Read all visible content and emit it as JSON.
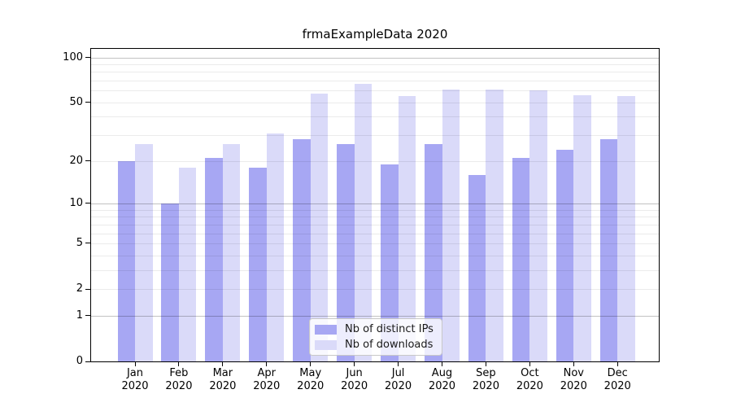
{
  "title": "frmaExampleData 2020",
  "chart_data": {
    "type": "bar",
    "title": "frmaExampleData 2020",
    "categories": [
      "Jan",
      "Feb",
      "Mar",
      "Apr",
      "May",
      "Jun",
      "Jul",
      "Aug",
      "Sep",
      "Oct",
      "Nov",
      "Dec"
    ],
    "category_year": "2020",
    "series": [
      {
        "name": "Nb of distinct IPs",
        "color": "#a7a7f3",
        "values": [
          20,
          10,
          21,
          18,
          28,
          26,
          19,
          26,
          16,
          21,
          24,
          28
        ]
      },
      {
        "name": "Nb of downloads",
        "color": "#dadaf9",
        "values": [
          26,
          18,
          26,
          31,
          57,
          67,
          55,
          61,
          61,
          60,
          56,
          55
        ]
      }
    ],
    "xlabel": "",
    "ylabel": "",
    "yscale": "log1p",
    "ylim": [
      0,
      114
    ],
    "y_ticks": [
      0,
      1,
      2,
      5,
      10,
      20,
      50,
      100
    ],
    "grid": true,
    "major_gridlines": [
      1,
      10,
      100
    ],
    "minor_gridlines": [
      2,
      3,
      4,
      5,
      6,
      7,
      8,
      9,
      20,
      30,
      40,
      50,
      60,
      70,
      80,
      90
    ],
    "legend_position": "lower center"
  },
  "colors": {
    "major_grid": "rgba(0,0,0,0.24)",
    "minor_grid": "rgba(0,0,0,0.08)",
    "axis": "#000000"
  }
}
